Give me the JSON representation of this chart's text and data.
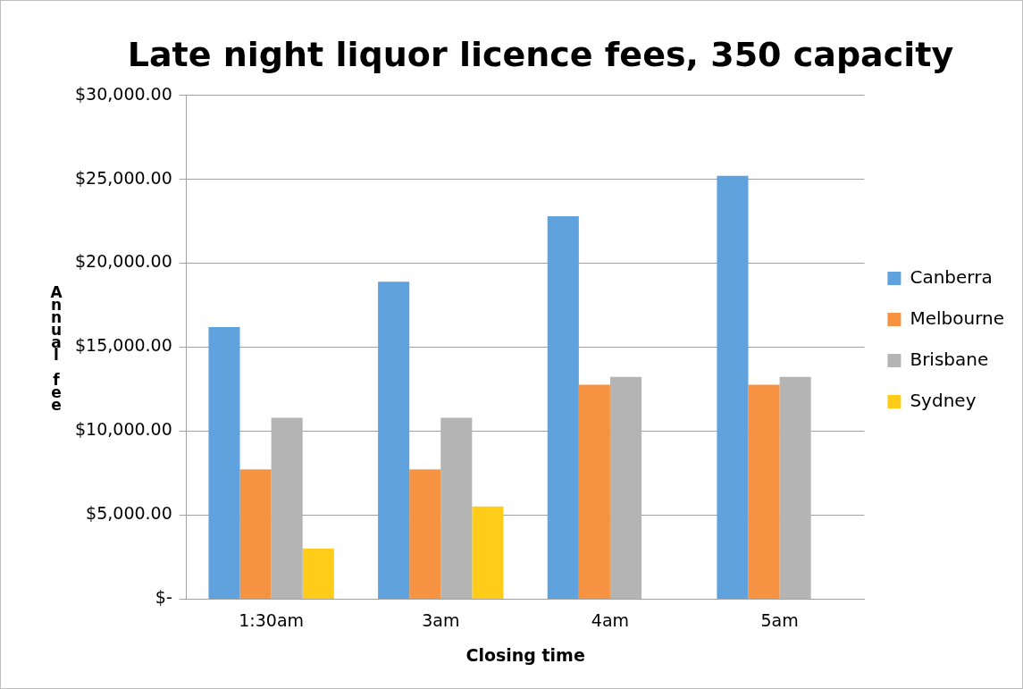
{
  "chart_data": {
    "type": "bar",
    "title": "Late night liquor licence fees, 350 capacity",
    "xlabel": "Closing time",
    "ylabel": "Annual fee",
    "categories": [
      "1:30am",
      "3am",
      "4am",
      "5am"
    ],
    "series": [
      {
        "name": "Canberra",
        "color": "#5fa2dd",
        "values": [
          16200,
          18900,
          22800,
          25200
        ]
      },
      {
        "name": "Melbourne",
        "color": "#f59343",
        "values": [
          7730,
          7730,
          12770,
          12770
        ]
      },
      {
        "name": "Brisbane",
        "color": "#b4b4b4",
        "values": [
          10800,
          10800,
          13230,
          13230
        ]
      },
      {
        "name": "Sydney",
        "color": "#ffcc1a",
        "values": [
          3010,
          5520,
          null,
          null
        ]
      }
    ],
    "ylim": [
      0,
      30000
    ],
    "yticks": [
      {
        "value": 0,
        "label": "$-"
      },
      {
        "value": 5000,
        "label": "$5,000.00"
      },
      {
        "value": 10000,
        "label": "$10,000.00"
      },
      {
        "value": 15000,
        "label": "$15,000.00"
      },
      {
        "value": 20000,
        "label": "$20,000.00"
      },
      {
        "value": 25000,
        "label": "$25,000.00"
      },
      {
        "value": 30000,
        "label": "$30,000.00"
      }
    ],
    "grid": "y",
    "legend": "right"
  }
}
